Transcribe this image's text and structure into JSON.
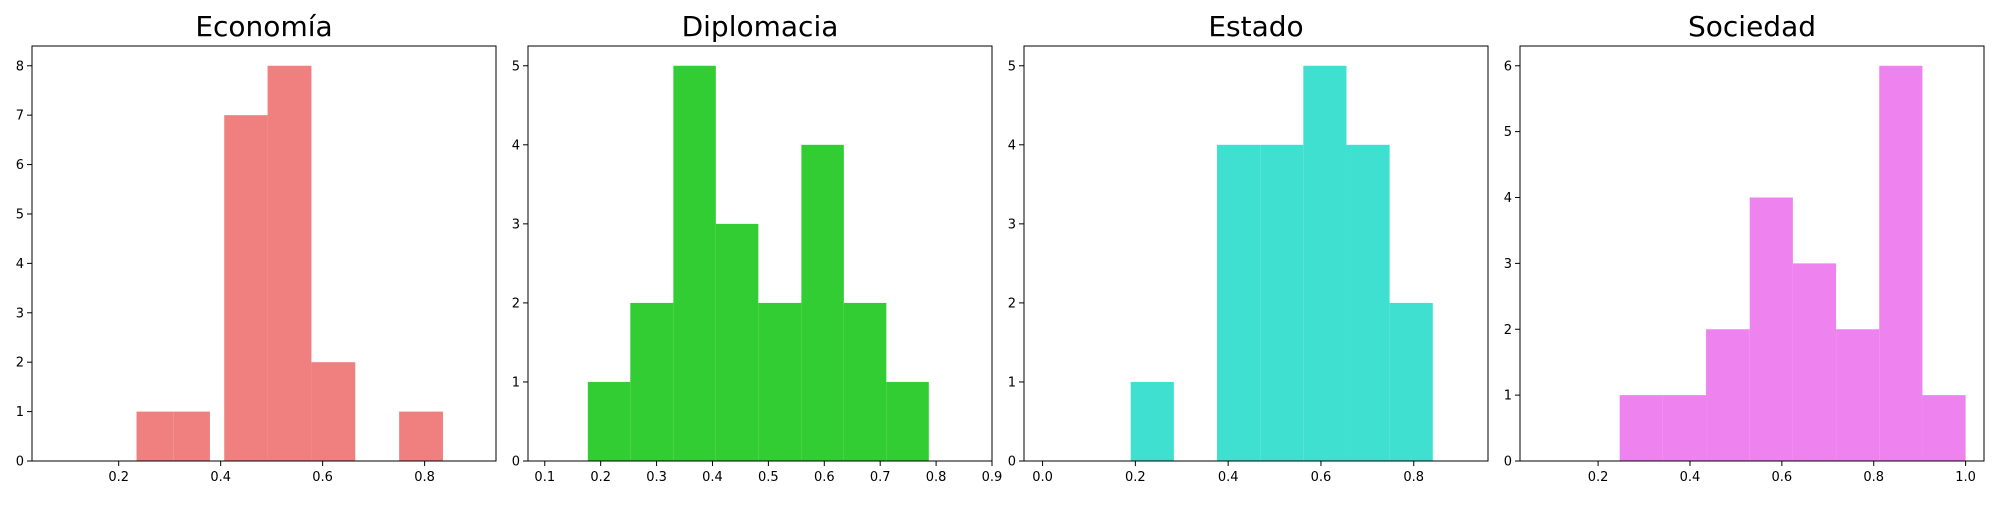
{
  "chart_data": [
    {
      "type": "histogram",
      "title": "Economía",
      "color": "#f08080",
      "xlim": [
        0.03,
        0.94
      ],
      "ylim": [
        0,
        8.4
      ],
      "xticks": [
        0.2,
        0.4,
        0.6,
        0.8
      ],
      "yticks": [
        0,
        1,
        2,
        3,
        4,
        5,
        6,
        7,
        8
      ],
      "bins": [
        {
          "x0": 0.235,
          "x1": 0.307,
          "count": 1
        },
        {
          "x0": 0.307,
          "x1": 0.379,
          "count": 1
        },
        {
          "x0": 0.379,
          "x1": 0.407,
          "count": 0
        },
        {
          "x0": 0.407,
          "x1": 0.492,
          "count": 7
        },
        {
          "x0": 0.492,
          "x1": 0.578,
          "count": 8
        },
        {
          "x0": 0.578,
          "x1": 0.664,
          "count": 2
        },
        {
          "x0": 0.664,
          "x1": 0.75,
          "count": 0
        },
        {
          "x0": 0.75,
          "x1": 0.836,
          "count": 1
        }
      ]
    },
    {
      "type": "histogram",
      "title": "Diplomacia",
      "color": "#32cd32",
      "xlim": [
        0.07,
        0.9
      ],
      "ylim": [
        0,
        5.25
      ],
      "xticks": [
        0.1,
        0.2,
        0.3,
        0.4,
        0.5,
        0.6,
        0.7,
        0.8,
        0.9
      ],
      "yticks": [
        0,
        1,
        2,
        3,
        4,
        5
      ],
      "bins": [
        {
          "x0": 0.177,
          "x1": 0.253,
          "count": 1
        },
        {
          "x0": 0.253,
          "x1": 0.33,
          "count": 2
        },
        {
          "x0": 0.33,
          "x1": 0.406,
          "count": 5
        },
        {
          "x0": 0.406,
          "x1": 0.482,
          "count": 3
        },
        {
          "x0": 0.482,
          "x1": 0.559,
          "count": 2
        },
        {
          "x0": 0.559,
          "x1": 0.635,
          "count": 4
        },
        {
          "x0": 0.635,
          "x1": 0.711,
          "count": 2
        },
        {
          "x0": 0.711,
          "x1": 0.787,
          "count": 1
        }
      ]
    },
    {
      "type": "histogram",
      "title": "Estado",
      "color": "#40e0d0",
      "xlim": [
        -0.04,
        0.96
      ],
      "ylim": [
        0,
        5.25
      ],
      "xticks": [
        0.0,
        0.2,
        0.4,
        0.6,
        0.8
      ],
      "yticks": [
        0,
        1,
        2,
        3,
        4,
        5
      ],
      "bins": [
        {
          "x0": 0.19,
          "x1": 0.283,
          "count": 1
        },
        {
          "x0": 0.283,
          "x1": 0.376,
          "count": 0
        },
        {
          "x0": 0.376,
          "x1": 0.469,
          "count": 4
        },
        {
          "x0": 0.469,
          "x1": 0.562,
          "count": 4
        },
        {
          "x0": 0.562,
          "x1": 0.655,
          "count": 5
        },
        {
          "x0": 0.655,
          "x1": 0.748,
          "count": 4
        },
        {
          "x0": 0.748,
          "x1": 0.841,
          "count": 2
        }
      ]
    },
    {
      "type": "histogram",
      "title": "Sociedad",
      "color": "#ee82ee",
      "xlim": [
        0.03,
        1.04
      ],
      "ylim": [
        0,
        6.3
      ],
      "xticks": [
        0.2,
        0.4,
        0.6,
        0.8,
        1.0
      ],
      "yticks": [
        0,
        1,
        2,
        3,
        4,
        5,
        6
      ],
      "bins": [
        {
          "x0": 0.247,
          "x1": 0.341,
          "count": 1
        },
        {
          "x0": 0.341,
          "x1": 0.435,
          "count": 1
        },
        {
          "x0": 0.435,
          "x1": 0.53,
          "count": 2
        },
        {
          "x0": 0.53,
          "x1": 0.624,
          "count": 4
        },
        {
          "x0": 0.624,
          "x1": 0.718,
          "count": 3
        },
        {
          "x0": 0.718,
          "x1": 0.812,
          "count": 2
        },
        {
          "x0": 0.812,
          "x1": 0.906,
          "count": 6
        },
        {
          "x0": 0.906,
          "x1": 1.0,
          "count": 1
        }
      ]
    }
  ]
}
